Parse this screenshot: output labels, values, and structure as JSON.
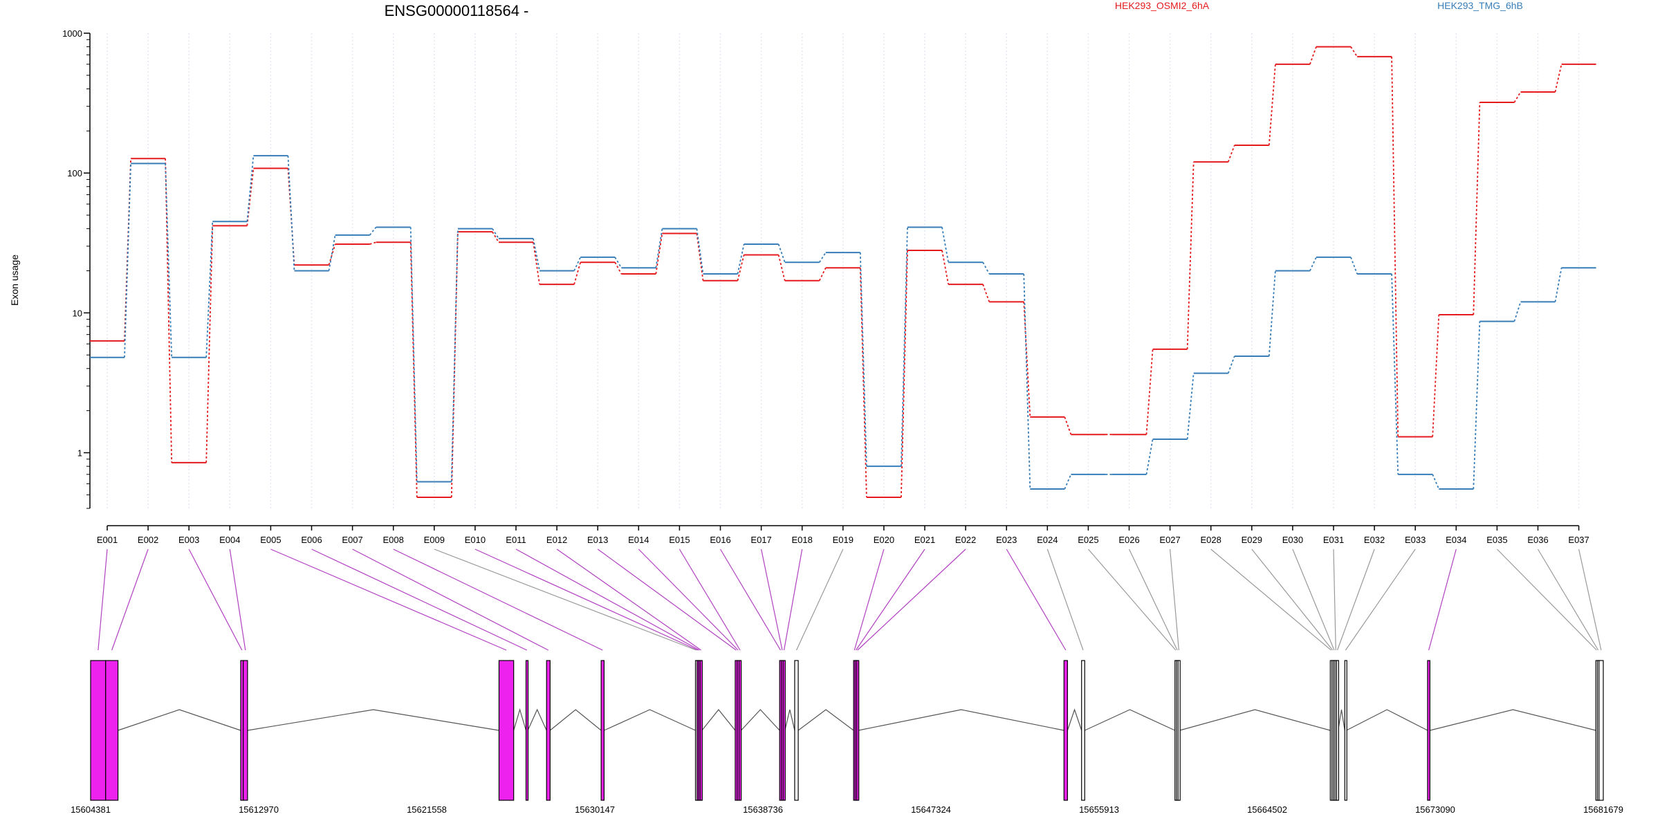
{
  "chart_data": {
    "type": "line",
    "title": "ENSG00000118564 -",
    "xlabel": "",
    "ylabel": "Exon usage",
    "yscale": "log",
    "ylim": [
      0.4,
      1000
    ],
    "yticks": [
      "1",
      "10",
      "100",
      "1000"
    ],
    "grid": "vertical dotted lines at each exon",
    "legend_position": "top",
    "categories": [
      "E001",
      "E002",
      "E003",
      "E004",
      "E005",
      "E006",
      "E007",
      "E008",
      "E009",
      "E010",
      "E011",
      "E012",
      "E013",
      "E014",
      "E015",
      "E016",
      "E017",
      "E018",
      "E019",
      "E020",
      "E021",
      "E022",
      "E023",
      "E024",
      "E025",
      "E026",
      "E027",
      "E028",
      "E029",
      "E030",
      "E031",
      "E032",
      "E033",
      "E034",
      "E035",
      "E036",
      "E037"
    ],
    "series": [
      {
        "name": "HEK293_OSMI2_6hA",
        "color": "#e41a1c",
        "values": [
          6.3,
          127,
          0.85,
          42,
          108,
          22,
          31,
          32,
          0.48,
          38,
          32,
          16,
          23,
          19,
          37,
          17,
          26,
          17,
          21,
          0.48,
          28,
          16,
          12,
          1.8,
          1.35,
          1.35,
          5.5,
          120,
          158,
          600,
          800,
          680,
          1.3,
          9.7,
          320,
          380,
          600
        ]
      },
      {
        "name": "HEK293_TMG_6hB",
        "color": "#377eb8",
        "values": [
          4.8,
          117,
          4.8,
          45,
          133,
          20,
          36,
          41,
          0.62,
          40,
          34,
          20,
          25,
          21,
          40,
          19,
          31,
          23,
          27,
          0.8,
          41,
          23,
          19,
          0.55,
          0.7,
          0.7,
          1.25,
          3.7,
          4.9,
          20,
          25,
          19,
          0.7,
          0.55,
          8.7,
          12,
          21
        ]
      }
    ],
    "gene_model": {
      "coordinate_ticks": [
        "15604381",
        "15612970",
        "15621558",
        "15630147",
        "15638736",
        "15647324",
        "15655913",
        "15664502",
        "15673090",
        "15681679"
      ],
      "xrange": [
        15604381,
        15681679
      ],
      "exons": [
        {
          "id": "E001",
          "start": 15604381,
          "end": 15605150,
          "highlight": true
        },
        {
          "id": "E002",
          "start": 15605150,
          "end": 15605780,
          "highlight": true
        },
        {
          "id": "E003",
          "start": 15612050,
          "end": 15612180,
          "highlight": true
        },
        {
          "id": "E004",
          "start": 15612180,
          "end": 15612400,
          "highlight": true
        },
        {
          "id": "E005",
          "start": 15625250,
          "end": 15626000,
          "highlight": true
        },
        {
          "id": "E006",
          "start": 15626630,
          "end": 15626720,
          "highlight": true
        },
        {
          "id": "E007",
          "start": 15627680,
          "end": 15627860,
          "highlight": true
        },
        {
          "id": "E008",
          "start": 15630470,
          "end": 15630620,
          "highlight": true
        },
        {
          "id": "E009",
          "start": 15635290,
          "end": 15635370,
          "highlight": false
        },
        {
          "id": "E010",
          "start": 15635370,
          "end": 15635450,
          "highlight": true
        },
        {
          "id": "E011",
          "start": 15635450,
          "end": 15635530,
          "highlight": true
        },
        {
          "id": "E012",
          "start": 15635530,
          "end": 15635620,
          "highlight": true
        },
        {
          "id": "E013",
          "start": 15637320,
          "end": 15637420,
          "highlight": true
        },
        {
          "id": "E014",
          "start": 15637420,
          "end": 15637520,
          "highlight": true
        },
        {
          "id": "E015",
          "start": 15637520,
          "end": 15637620,
          "highlight": true
        },
        {
          "id": "E016",
          "start": 15639590,
          "end": 15639680,
          "highlight": true
        },
        {
          "id": "E017",
          "start": 15639680,
          "end": 15639770,
          "highlight": true
        },
        {
          "id": "E018",
          "start": 15639770,
          "end": 15639860,
          "highlight": true
        },
        {
          "id": "E019",
          "start": 15640360,
          "end": 15640540,
          "highlight": false
        },
        {
          "id": "E020",
          "start": 15643370,
          "end": 15643450,
          "highlight": true
        },
        {
          "id": "E021",
          "start": 15643450,
          "end": 15643530,
          "highlight": true
        },
        {
          "id": "E022",
          "start": 15643530,
          "end": 15643610,
          "highlight": true
        },
        {
          "id": "E023",
          "start": 15654120,
          "end": 15654300,
          "highlight": true
        },
        {
          "id": "E024",
          "start": 15655020,
          "end": 15655180,
          "highlight": false
        },
        {
          "id": "E025",
          "start": 15659790,
          "end": 15659870,
          "highlight": false
        },
        {
          "id": "E026",
          "start": 15659870,
          "end": 15659950,
          "highlight": false
        },
        {
          "id": "E027",
          "start": 15659950,
          "end": 15660030,
          "highlight": false
        },
        {
          "id": "E028",
          "start": 15667730,
          "end": 15667810,
          "highlight": false
        },
        {
          "id": "E029",
          "start": 15667810,
          "end": 15667890,
          "highlight": false
        },
        {
          "id": "E030",
          "start": 15667890,
          "end": 15667970,
          "highlight": false
        },
        {
          "id": "E031",
          "start": 15667970,
          "end": 15668050,
          "highlight": false
        },
        {
          "id": "E032",
          "start": 15668050,
          "end": 15668130,
          "highlight": false
        },
        {
          "id": "E033",
          "start": 15668470,
          "end": 15668550,
          "highlight": false
        },
        {
          "id": "E034",
          "start": 15672700,
          "end": 15672820,
          "highlight": true
        },
        {
          "id": "E035",
          "start": 15681300,
          "end": 15681380,
          "highlight": false
        },
        {
          "id": "E036",
          "start": 15681380,
          "end": 15681460,
          "highlight": false
        },
        {
          "id": "E037",
          "start": 15681460,
          "end": 15681679,
          "highlight": false
        }
      ]
    }
  },
  "colors": {
    "highlight_exon": "#ee22ee",
    "highlight_link": "#b040c0",
    "plain_link": "#999999",
    "grid": "#e4e8f0",
    "axis": "#000000",
    "intron": "#555555"
  }
}
